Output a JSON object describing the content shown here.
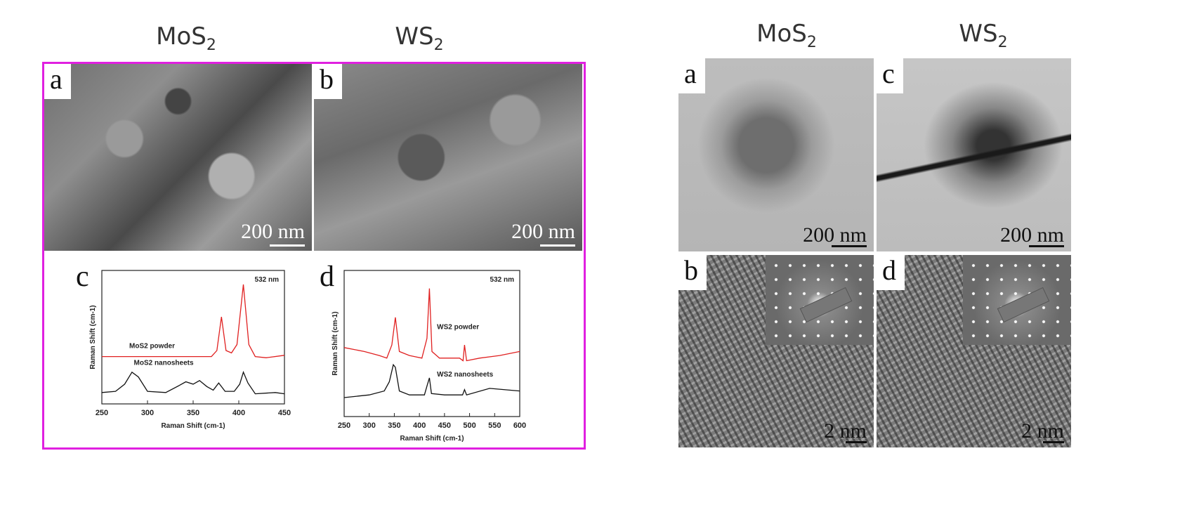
{
  "left": {
    "titles": [
      "MoS",
      "WS"
    ],
    "panels": {
      "a": "a",
      "b": "b",
      "c": "c",
      "d": "d"
    },
    "scalebar": "200 nm"
  },
  "right": {
    "titles": [
      "MoS",
      "WS"
    ],
    "panels": {
      "a": "a",
      "b": "b",
      "c": "c",
      "d": "d"
    },
    "scalebar_low": "200 nm",
    "scalebar_high": "2 nm"
  },
  "subscript": "2",
  "chart_data": [
    {
      "type": "line",
      "panel": "c",
      "annotation": "532 nm",
      "xlabel": "Raman Shift (cm-1)",
      "ylabel": "Raman Shift (cm-1)",
      "xlim": [
        250,
        450
      ],
      "xticks": [
        250,
        300,
        350,
        400,
        450
      ],
      "ylim": [
        0,
        1
      ],
      "grid": false,
      "series": [
        {
          "name": "MoS2 powder",
          "color": "#e02020",
          "points": [
            [
              250,
              0.35
            ],
            [
              300,
              0.35
            ],
            [
              350,
              0.35
            ],
            [
              370,
              0.35
            ],
            [
              376,
              0.4
            ],
            [
              381,
              0.68
            ],
            [
              386,
              0.4
            ],
            [
              392,
              0.38
            ],
            [
              398,
              0.45
            ],
            [
              405,
              0.95
            ],
            [
              411,
              0.45
            ],
            [
              418,
              0.35
            ],
            [
              430,
              0.34
            ],
            [
              450,
              0.36
            ]
          ]
        },
        {
          "name": "MoS2 nanosheets",
          "color": "#111111",
          "points": [
            [
              250,
              0.05
            ],
            [
              265,
              0.06
            ],
            [
              275,
              0.12
            ],
            [
              283,
              0.22
            ],
            [
              290,
              0.18
            ],
            [
              300,
              0.06
            ],
            [
              320,
              0.05
            ],
            [
              335,
              0.11
            ],
            [
              342,
              0.14
            ],
            [
              350,
              0.12
            ],
            [
              357,
              0.15
            ],
            [
              365,
              0.1
            ],
            [
              372,
              0.07
            ],
            [
              378,
              0.13
            ],
            [
              385,
              0.06
            ],
            [
              395,
              0.06
            ],
            [
              401,
              0.12
            ],
            [
              405,
              0.22
            ],
            [
              410,
              0.13
            ],
            [
              418,
              0.04
            ],
            [
              440,
              0.05
            ],
            [
              450,
              0.04
            ]
          ]
        }
      ]
    },
    {
      "type": "line",
      "panel": "d",
      "annotation": "532 nm",
      "xlabel": "Raman Shift (cm-1)",
      "ylabel": "Raman Shift (cm-1)",
      "xlim": [
        250,
        600
      ],
      "xticks": [
        250,
        300,
        350,
        400,
        450,
        500,
        550,
        600
      ],
      "ylim": [
        0,
        1
      ],
      "grid": false,
      "series": [
        {
          "name": "WS2 powder",
          "color": "#e02020",
          "points": [
            [
              250,
              0.48
            ],
            [
              290,
              0.45
            ],
            [
              320,
              0.42
            ],
            [
              335,
              0.4
            ],
            [
              345,
              0.5
            ],
            [
              352,
              0.71
            ],
            [
              360,
              0.45
            ],
            [
              380,
              0.42
            ],
            [
              405,
              0.4
            ],
            [
              415,
              0.55
            ],
            [
              420,
              0.93
            ],
            [
              425,
              0.45
            ],
            [
              440,
              0.4
            ],
            [
              480,
              0.4
            ],
            [
              487,
              0.38
            ],
            [
              490,
              0.5
            ],
            [
              494,
              0.38
            ],
            [
              520,
              0.4
            ],
            [
              560,
              0.42
            ],
            [
              600,
              0.45
            ]
          ]
        },
        {
          "name": "WS2 nanosheets",
          "color": "#111111",
          "points": [
            [
              250,
              0.1
            ],
            [
              300,
              0.12
            ],
            [
              330,
              0.15
            ],
            [
              340,
              0.22
            ],
            [
              348,
              0.35
            ],
            [
              352,
              0.33
            ],
            [
              360,
              0.15
            ],
            [
              380,
              0.12
            ],
            [
              410,
              0.12
            ],
            [
              416,
              0.2
            ],
            [
              420,
              0.25
            ],
            [
              424,
              0.13
            ],
            [
              450,
              0.12
            ],
            [
              486,
              0.12
            ],
            [
              490,
              0.16
            ],
            [
              494,
              0.12
            ],
            [
              540,
              0.17
            ],
            [
              600,
              0.15
            ]
          ]
        }
      ]
    }
  ]
}
